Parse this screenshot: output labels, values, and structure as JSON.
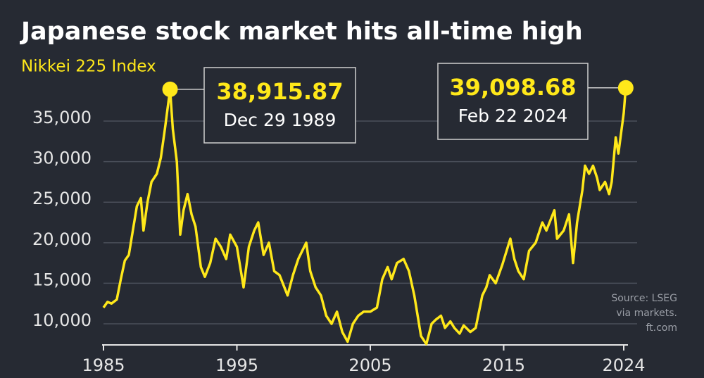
{
  "chart_data": {
    "type": "line",
    "title": "Japanese stock market hits all-time high",
    "subtitle": "Nikkei 225 Index",
    "color": "#ffe81a",
    "x": [
      1985.0,
      1985.3,
      1985.6,
      1986.0,
      1986.3,
      1986.6,
      1986.9,
      1987.2,
      1987.5,
      1987.8,
      1988.0,
      1988.3,
      1988.6,
      1989.0,
      1989.3,
      1989.6,
      1989.99,
      1990.2,
      1990.5,
      1990.75,
      1991.0,
      1991.3,
      1991.6,
      1991.9,
      1992.3,
      1992.6,
      1993.0,
      1993.4,
      1993.8,
      1994.2,
      1994.5,
      1995.0,
      1995.5,
      1995.9,
      1996.3,
      1996.6,
      1997.0,
      1997.4,
      1997.8,
      1998.2,
      1998.8,
      1999.2,
      1999.6,
      2000.2,
      2000.5,
      2000.9,
      2001.3,
      2001.7,
      2002.1,
      2002.5,
      2002.9,
      2003.3,
      2003.7,
      2004.1,
      2004.5,
      2005.0,
      2005.5,
      2005.9,
      2006.3,
      2006.6,
      2007.0,
      2007.5,
      2007.9,
      2008.3,
      2008.8,
      2009.2,
      2009.6,
      2009.9,
      2010.3,
      2010.6,
      2011.0,
      2011.3,
      2011.7,
      2012.0,
      2012.5,
      2012.9,
      2013.4,
      2013.7,
      2013.95,
      2014.4,
      2014.9,
      2015.5,
      2015.8,
      2016.1,
      2016.5,
      2016.9,
      2017.4,
      2017.9,
      2018.2,
      2018.8,
      2019.0,
      2019.5,
      2019.9,
      2020.2,
      2020.5,
      2020.9,
      2021.1,
      2021.4,
      2021.7,
      2022.0,
      2022.2,
      2022.6,
      2022.9,
      2023.1,
      2023.4,
      2023.6,
      2023.8,
      2024.0,
      2024.15
    ],
    "values": [
      12000,
      12700,
      12500,
      13000,
      15500,
      17800,
      18500,
      21500,
      24500,
      25500,
      21500,
      25000,
      27500,
      28500,
      30500,
      34000,
      38915.87,
      34000,
      30000,
      21000,
      24000,
      26000,
      23500,
      22000,
      17000,
      15800,
      17500,
      20500,
      19500,
      18000,
      21000,
      19500,
      14500,
      19500,
      21500,
      22500,
      18500,
      20000,
      16500,
      16000,
      13500,
      16000,
      18000,
      20000,
      16500,
      14500,
      13500,
      11000,
      10000,
      11500,
      9000,
      7800,
      10000,
      11000,
      11500,
      11500,
      12000,
      15500,
      17000,
      15500,
      17500,
      18000,
      16500,
      13500,
      8500,
      7500,
      10000,
      10500,
      11000,
      9500,
      10300,
      9500,
      8800,
      9800,
      9000,
      9500,
      13500,
      14500,
      16000,
      15000,
      17300,
      20500,
      18000,
      16500,
      15500,
      19000,
      20000,
      22500,
      21500,
      24000,
      20500,
      21500,
      23500,
      17500,
      22500,
      26500,
      29500,
      28500,
      29500,
      28000,
      26500,
      27500,
      26000,
      27500,
      33000,
      31000,
      33500,
      36000,
      39098.68
    ],
    "xlim": [
      1985,
      2024
    ],
    "ylim": [
      7400,
      40000
    ],
    "yticks": [
      {
        "value": 10000,
        "label": "10,000"
      },
      {
        "value": 15000,
        "label": "15,000"
      },
      {
        "value": 20000,
        "label": "20,000"
      },
      {
        "value": 25000,
        "label": "25,000"
      },
      {
        "value": 30000,
        "label": "30,000"
      },
      {
        "value": 35000,
        "label": "35,000"
      }
    ],
    "xticks": [
      1985,
      1995,
      2005,
      2015,
      2024
    ],
    "grid": true,
    "annotations": [
      {
        "x": 1989.99,
        "y": 38915.87,
        "value_label": "38,915.87",
        "date": "Dec 29 1989"
      },
      {
        "x": 2024.15,
        "y": 39098.68,
        "value_label": "39,098.68",
        "date": "Feb 22 2024"
      }
    ],
    "source": [
      "Source: LSEG",
      "via markets.",
      "ft.com"
    ]
  }
}
